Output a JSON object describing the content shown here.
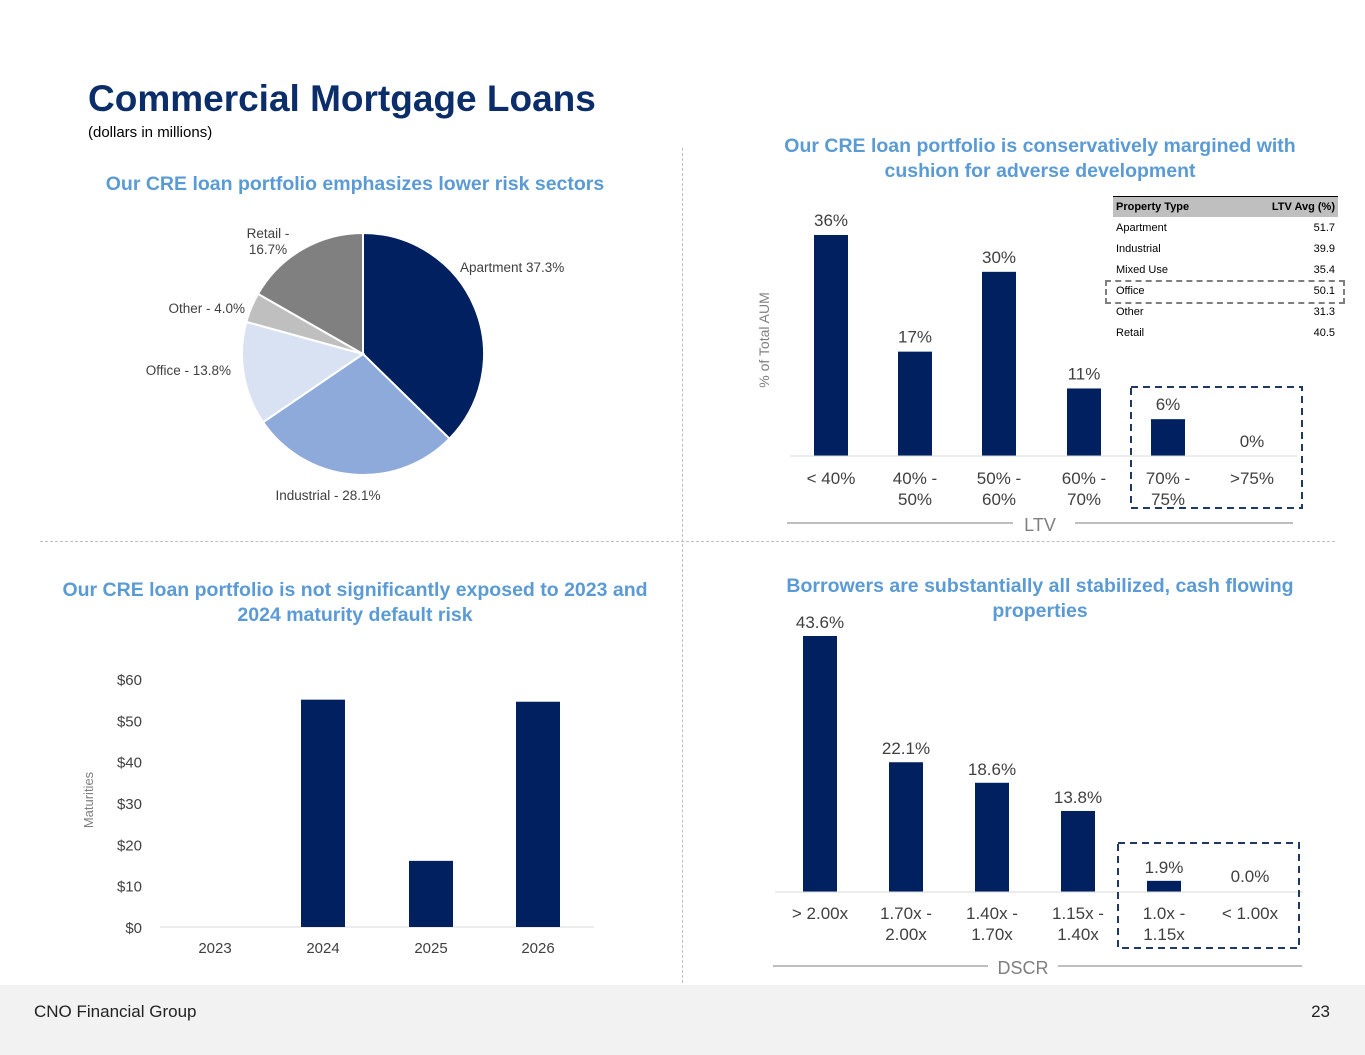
{
  "header": {
    "title": "Commercial Mortgage Loans",
    "subtitle": "(dollars in millions)"
  },
  "footer": {
    "company": "CNO Financial Group",
    "page_number": "23"
  },
  "colors": {
    "navy": "#002060",
    "title_blue": "#0b2e6b",
    "heading_blue": "#5b9bd5"
  },
  "sections": {
    "sectors_heading": "Our CRE loan portfolio emphasizes lower risk sectors",
    "ltv_heading": "Our CRE loan portfolio is conservatively margined with cushion for adverse development",
    "maturity_heading": "Our CRE loan portfolio is not significantly exposed to 2023 and 2024 maturity default risk",
    "dscr_heading": "Borrowers are substantially all stabilized, cash flowing properties"
  },
  "ltv_table": {
    "headers": [
      "Property Type",
      "LTV Avg (%)"
    ],
    "rows": [
      [
        "Apartment",
        "51.7"
      ],
      [
        "Industrial",
        "39.9"
      ],
      [
        "Mixed Use",
        "35.4"
      ],
      [
        "Office",
        "50.1"
      ],
      [
        "Other",
        "31.3"
      ],
      [
        "Retail",
        "40.5"
      ]
    ],
    "highlighted_row": "Office"
  },
  "chart_data": [
    {
      "type": "pie",
      "slices": [
        {
          "label": "Apartment 37.3%",
          "value": 37.3,
          "color": "#002060"
        },
        {
          "label": "Industrial - 28.1%",
          "value": 28.1,
          "color": "#8eaadb"
        },
        {
          "label": "Office - 13.8%",
          "value": 13.8,
          "color": "#d9e2f3"
        },
        {
          "label": "Other - 4.0%",
          "value": 4.0,
          "color": "#bfbfbf"
        },
        {
          "label": "Retail - 16.7%",
          "value": 16.7,
          "color": "#808080"
        }
      ]
    },
    {
      "type": "bar",
      "categories": [
        "< 40%",
        "40% - 50%",
        "50% - 60%",
        "60% - 70%",
        "70% - 75%",
        ">75%"
      ],
      "values": [
        36,
        17,
        30,
        11,
        6,
        0
      ],
      "data_labels": [
        "36%",
        "17%",
        "30%",
        "11%",
        "6%",
        "0%"
      ],
      "xlabel": "LTV",
      "ylabel": "% of Total AUM",
      "ylim": [
        0,
        36
      ],
      "highlighted": [
        "70% - 75%",
        ">75%"
      ]
    },
    {
      "type": "bar",
      "categories": [
        "2023",
        "2024",
        "2025",
        "2026"
      ],
      "values": [
        0,
        55,
        16,
        54.5
      ],
      "ylabel": "Maturities",
      "ylim": [
        0,
        60
      ],
      "yticks": [
        "$0",
        "$10",
        "$20",
        "$30",
        "$40",
        "$50",
        "$60"
      ]
    },
    {
      "type": "bar",
      "categories": [
        "> 2.00x",
        "1.70x - 2.00x",
        "1.40x - 1.70x",
        "1.15x - 1.40x",
        "1.0x - 1.15x",
        "< 1.00x"
      ],
      "values": [
        43.6,
        22.1,
        18.6,
        13.8,
        1.9,
        0.0
      ],
      "data_labels": [
        "43.6%",
        "22.1%",
        "18.6%",
        "13.8%",
        "1.9%",
        "0.0%"
      ],
      "xlabel": "DSCR",
      "ylim": [
        0,
        43.6
      ],
      "highlighted": [
        "1.0x - 1.15x",
        "< 1.00x"
      ]
    }
  ]
}
